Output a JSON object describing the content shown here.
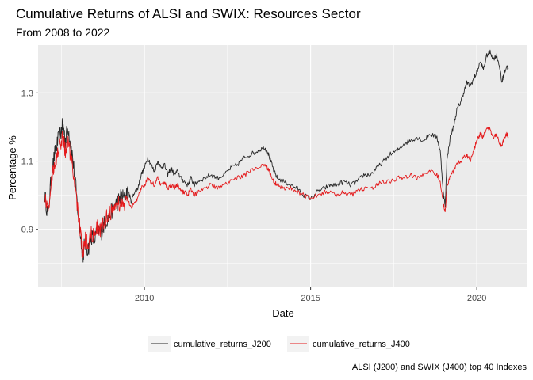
{
  "chart_data": {
    "type": "line",
    "title": "Cumulative Returns of ALSI and SWIX: Resources Sector",
    "subtitle": "From 2008 to 2022",
    "caption": "ALSI (J200) and SWIX (J400) top 40 Indexes",
    "xlabel": "Date",
    "ylabel": "Percentage %",
    "x_ticks": [
      2010,
      2015,
      2020
    ],
    "y_ticks": [
      0.9,
      1.1,
      1.3
    ],
    "xlim": [
      2006.8,
      2021.5
    ],
    "ylim": [
      0.73,
      1.44
    ],
    "grid": true,
    "legend_position": "bottom",
    "colors": {
      "panel": "#ebebeb",
      "grid": "#ffffff",
      "J200": "#262626",
      "J400": "#e41a1c"
    },
    "series": [
      {
        "name": "cumulative_returns_J200",
        "color": "#262626",
        "points": [
          [
            2007.0,
            1.0
          ],
          [
            2007.1,
            0.94
          ],
          [
            2007.2,
            1.06
          ],
          [
            2007.3,
            1.12
          ],
          [
            2007.4,
            1.16
          ],
          [
            2007.5,
            1.19
          ],
          [
            2007.55,
            1.21
          ],
          [
            2007.62,
            1.16
          ],
          [
            2007.7,
            1.2
          ],
          [
            2007.8,
            1.14
          ],
          [
            2007.9,
            1.06
          ],
          [
            2008.0,
            0.95
          ],
          [
            2008.1,
            0.86
          ],
          [
            2008.15,
            0.82
          ],
          [
            2008.2,
            0.86
          ],
          [
            2008.3,
            0.84
          ],
          [
            2008.4,
            0.88
          ],
          [
            2008.5,
            0.87
          ],
          [
            2008.6,
            0.9
          ],
          [
            2008.7,
            0.89
          ],
          [
            2008.8,
            0.92
          ],
          [
            2008.9,
            0.93
          ],
          [
            2009.0,
            0.95
          ],
          [
            2009.1,
            0.97
          ],
          [
            2009.2,
            0.98
          ],
          [
            2009.3,
            1.0
          ],
          [
            2009.4,
            0.99
          ],
          [
            2009.5,
            1.02
          ],
          [
            2009.6,
            0.98
          ],
          [
            2009.7,
            1.01
          ],
          [
            2009.8,
            1.02
          ],
          [
            2009.9,
            1.06
          ],
          [
            2010.0,
            1.08
          ],
          [
            2010.1,
            1.11
          ],
          [
            2010.2,
            1.09
          ],
          [
            2010.3,
            1.07
          ],
          [
            2010.4,
            1.1
          ],
          [
            2010.5,
            1.08
          ],
          [
            2010.6,
            1.09
          ],
          [
            2010.7,
            1.06
          ],
          [
            2010.8,
            1.08
          ],
          [
            2010.9,
            1.06
          ],
          [
            2011.0,
            1.07
          ],
          [
            2011.1,
            1.05
          ],
          [
            2011.2,
            1.04
          ],
          [
            2011.3,
            1.03
          ],
          [
            2011.4,
            1.05
          ],
          [
            2011.5,
            1.03
          ],
          [
            2011.6,
            1.04
          ],
          [
            2011.8,
            1.05
          ],
          [
            2012.0,
            1.06
          ],
          [
            2012.2,
            1.05
          ],
          [
            2012.4,
            1.06
          ],
          [
            2012.6,
            1.08
          ],
          [
            2012.8,
            1.09
          ],
          [
            2013.0,
            1.11
          ],
          [
            2013.2,
            1.12
          ],
          [
            2013.4,
            1.13
          ],
          [
            2013.6,
            1.14
          ],
          [
            2013.7,
            1.13
          ],
          [
            2013.8,
            1.1
          ],
          [
            2013.9,
            1.07
          ],
          [
            2014.0,
            1.05
          ],
          [
            2014.2,
            1.04
          ],
          [
            2014.4,
            1.03
          ],
          [
            2014.6,
            1.02
          ],
          [
            2014.8,
            1.0
          ],
          [
            2015.0,
            0.99
          ],
          [
            2015.2,
            1.01
          ],
          [
            2015.4,
            1.02
          ],
          [
            2015.6,
            1.03
          ],
          [
            2015.8,
            1.03
          ],
          [
            2016.0,
            1.04
          ],
          [
            2016.2,
            1.03
          ],
          [
            2016.4,
            1.04
          ],
          [
            2016.6,
            1.06
          ],
          [
            2016.8,
            1.06
          ],
          [
            2017.0,
            1.08
          ],
          [
            2017.2,
            1.1
          ],
          [
            2017.4,
            1.12
          ],
          [
            2017.6,
            1.13
          ],
          [
            2017.8,
            1.15
          ],
          [
            2018.0,
            1.16
          ],
          [
            2018.2,
            1.17
          ],
          [
            2018.4,
            1.16
          ],
          [
            2018.6,
            1.18
          ],
          [
            2018.8,
            1.17
          ],
          [
            2018.9,
            1.13
          ],
          [
            2019.0,
            1.0
          ],
          [
            2019.05,
            0.97
          ],
          [
            2019.1,
            1.1
          ],
          [
            2019.2,
            1.17
          ],
          [
            2019.3,
            1.2
          ],
          [
            2019.4,
            1.25
          ],
          [
            2019.5,
            1.27
          ],
          [
            2019.6,
            1.3
          ],
          [
            2019.7,
            1.33
          ],
          [
            2019.8,
            1.32
          ],
          [
            2019.9,
            1.34
          ],
          [
            2020.0,
            1.36
          ],
          [
            2020.1,
            1.39
          ],
          [
            2020.2,
            1.37
          ],
          [
            2020.3,
            1.41
          ],
          [
            2020.4,
            1.42
          ],
          [
            2020.5,
            1.4
          ],
          [
            2020.6,
            1.41
          ],
          [
            2020.7,
            1.37
          ],
          [
            2020.75,
            1.33
          ],
          [
            2020.8,
            1.35
          ],
          [
            2020.9,
            1.38
          ],
          [
            2020.95,
            1.37
          ]
        ]
      },
      {
        "name": "cumulative_returns_J400",
        "color": "#e41a1c",
        "points": [
          [
            2007.0,
            1.0
          ],
          [
            2007.1,
            0.95
          ],
          [
            2007.2,
            1.04
          ],
          [
            2007.3,
            1.09
          ],
          [
            2007.4,
            1.13
          ],
          [
            2007.5,
            1.16
          ],
          [
            2007.55,
            1.17
          ],
          [
            2007.62,
            1.13
          ],
          [
            2007.7,
            1.16
          ],
          [
            2007.8,
            1.1
          ],
          [
            2007.9,
            1.03
          ],
          [
            2008.0,
            0.95
          ],
          [
            2008.1,
            0.87
          ],
          [
            2008.15,
            0.83
          ],
          [
            2008.2,
            0.87
          ],
          [
            2008.3,
            0.86
          ],
          [
            2008.4,
            0.89
          ],
          [
            2008.5,
            0.88
          ],
          [
            2008.6,
            0.91
          ],
          [
            2008.7,
            0.9
          ],
          [
            2008.8,
            0.93
          ],
          [
            2008.9,
            0.94
          ],
          [
            2009.0,
            0.95
          ],
          [
            2009.1,
            0.97
          ],
          [
            2009.2,
            0.97
          ],
          [
            2009.3,
            0.98
          ],
          [
            2009.4,
            0.97
          ],
          [
            2009.5,
            0.99
          ],
          [
            2009.6,
            0.96
          ],
          [
            2009.7,
            0.98
          ],
          [
            2009.8,
            0.99
          ],
          [
            2009.9,
            1.02
          ],
          [
            2010.0,
            1.03
          ],
          [
            2010.1,
            1.05
          ],
          [
            2010.2,
            1.04
          ],
          [
            2010.3,
            1.03
          ],
          [
            2010.4,
            1.05
          ],
          [
            2010.5,
            1.03
          ],
          [
            2010.6,
            1.04
          ],
          [
            2010.7,
            1.02
          ],
          [
            2010.8,
            1.03
          ],
          [
            2010.9,
            1.02
          ],
          [
            2011.0,
            1.03
          ],
          [
            2011.1,
            1.01
          ],
          [
            2011.2,
            1.01
          ],
          [
            2011.3,
            1.0
          ],
          [
            2011.4,
            1.02
          ],
          [
            2011.5,
            1.0
          ],
          [
            2011.6,
            1.01
          ],
          [
            2011.8,
            1.02
          ],
          [
            2012.0,
            1.03
          ],
          [
            2012.2,
            1.02
          ],
          [
            2012.4,
            1.03
          ],
          [
            2012.6,
            1.04
          ],
          [
            2012.8,
            1.05
          ],
          [
            2013.0,
            1.06
          ],
          [
            2013.2,
            1.07
          ],
          [
            2013.4,
            1.08
          ],
          [
            2013.6,
            1.09
          ],
          [
            2013.7,
            1.08
          ],
          [
            2013.8,
            1.06
          ],
          [
            2013.9,
            1.04
          ],
          [
            2014.0,
            1.03
          ],
          [
            2014.2,
            1.02
          ],
          [
            2014.4,
            1.02
          ],
          [
            2014.6,
            1.01
          ],
          [
            2014.8,
            1.0
          ],
          [
            2015.0,
            0.99
          ],
          [
            2015.2,
            1.0
          ],
          [
            2015.4,
            1.01
          ],
          [
            2015.6,
            1.01
          ],
          [
            2015.8,
            1.0
          ],
          [
            2016.0,
            1.01
          ],
          [
            2016.2,
            1.0
          ],
          [
            2016.4,
            1.01
          ],
          [
            2016.6,
            1.02
          ],
          [
            2016.8,
            1.02
          ],
          [
            2017.0,
            1.03
          ],
          [
            2017.2,
            1.04
          ],
          [
            2017.4,
            1.04
          ],
          [
            2017.6,
            1.05
          ],
          [
            2017.8,
            1.05
          ],
          [
            2018.0,
            1.06
          ],
          [
            2018.2,
            1.05
          ],
          [
            2018.4,
            1.06
          ],
          [
            2018.6,
            1.07
          ],
          [
            2018.8,
            1.06
          ],
          [
            2018.9,
            1.04
          ],
          [
            2019.0,
            0.97
          ],
          [
            2019.05,
            0.95
          ],
          [
            2019.1,
            1.02
          ],
          [
            2019.2,
            1.06
          ],
          [
            2019.3,
            1.07
          ],
          [
            2019.4,
            1.09
          ],
          [
            2019.5,
            1.1
          ],
          [
            2019.6,
            1.11
          ],
          [
            2019.7,
            1.12
          ],
          [
            2019.8,
            1.1
          ],
          [
            2019.9,
            1.13
          ],
          [
            2020.0,
            1.16
          ],
          [
            2020.1,
            1.18
          ],
          [
            2020.2,
            1.17
          ],
          [
            2020.3,
            1.2
          ],
          [
            2020.4,
            1.19
          ],
          [
            2020.5,
            1.17
          ],
          [
            2020.6,
            1.18
          ],
          [
            2020.7,
            1.15
          ],
          [
            2020.75,
            1.14
          ],
          [
            2020.8,
            1.16
          ],
          [
            2020.9,
            1.18
          ],
          [
            2020.95,
            1.17
          ]
        ]
      }
    ]
  }
}
